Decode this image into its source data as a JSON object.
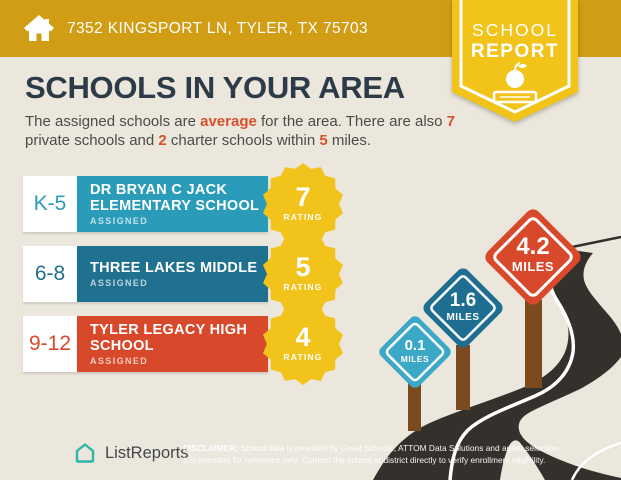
{
  "header": {
    "address": "7352 KINGSPORT LN, TYLER, TX 75703"
  },
  "ribbon": {
    "line1": "SCHOOL",
    "line2": "REPORT"
  },
  "title": "SCHOOLS IN YOUR AREA",
  "intro": {
    "seg1": "The assigned schools are ",
    "hl1": "average",
    "seg2": " for the area. There are also ",
    "hl2": "7",
    "seg3": " private schools and ",
    "hl3": "2",
    "seg4": " charter schools within ",
    "hl4": "5",
    "seg5": " miles."
  },
  "schools": [
    {
      "grades": "K-5",
      "name": "DR BRYAN C JACK ELEMENTARY SCHOOL",
      "status": "ASSIGNED",
      "rating": "7",
      "rating_label": "RATING",
      "color": "#2a9cba"
    },
    {
      "grades": "6-8",
      "name": "THREE LAKES MIDDLE",
      "status": "ASSIGNED",
      "rating": "5",
      "rating_label": "RATING",
      "color": "#20708f"
    },
    {
      "grades": "9-12",
      "name": "TYLER LEGACY HIGH SCHOOL",
      "status": "ASSIGNED",
      "rating": "4",
      "rating_label": "RATING",
      "color": "#d8492b"
    }
  ],
  "distance_signs": [
    {
      "value": "0.1",
      "unit": "MILES",
      "color": "#3aa8c6"
    },
    {
      "value": "1.6",
      "unit": "MILES",
      "color": "#1e6e91"
    },
    {
      "value": "4.2",
      "unit": "MILES",
      "color": "#d8492b"
    }
  ],
  "footer": {
    "brand": "ListReports",
    "disclaimer_label": "DISCLAIMER:",
    "disclaimer_text": " School data is provided by Great Schools, ATTOM Data Solutions and agent selection. It is intended for reference only. Contact the school or district directly to verify enrollment eligibility."
  },
  "colors": {
    "header_gold": "#d19d15",
    "ribbon_yellow": "#f2c318",
    "seal_yellow": "#f2c31a",
    "background_cream": "#ebe7dd",
    "title_navy": "#2c3b47",
    "accent_orange": "#d8512d",
    "road_dark": "#34302c",
    "post_brown": "#7b4a1e",
    "logo_teal": "#2eb6a9"
  }
}
